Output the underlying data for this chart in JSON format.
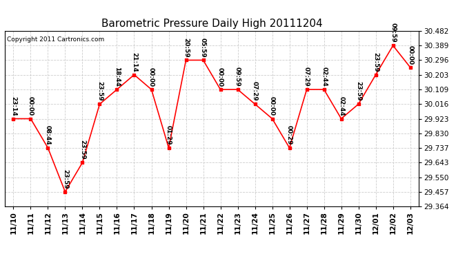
{
  "title": "Barometric Pressure Daily High 20111204",
  "copyright": "Copyright 2011 Cartronics.com",
  "x_labels": [
    "11/10",
    "11/11",
    "11/12",
    "11/13",
    "11/14",
    "11/15",
    "11/16",
    "11/17",
    "11/18",
    "11/19",
    "11/20",
    "11/21",
    "11/22",
    "11/23",
    "11/24",
    "11/25",
    "11/26",
    "11/27",
    "11/28",
    "11/29",
    "11/30",
    "12/01",
    "12/02",
    "12/03"
  ],
  "y_values": [
    29.923,
    29.923,
    29.737,
    29.457,
    29.643,
    30.016,
    30.109,
    30.203,
    30.109,
    29.737,
    30.296,
    30.296,
    30.109,
    30.109,
    30.016,
    29.923,
    29.737,
    30.109,
    30.109,
    29.923,
    30.016,
    30.203,
    30.389,
    30.25
  ],
  "point_labels": [
    "23:14",
    "00:00",
    "08:44",
    "23:59",
    "23:59",
    "23:59",
    "18:44",
    "21:14",
    "00:00",
    "01:29",
    "20:59",
    "05:59",
    "00:00",
    "09:59",
    "07:29",
    "00:00",
    "00:29",
    "07:29",
    "02:44",
    "02:44",
    "23:59",
    "23:59",
    "09:59",
    "00:00"
  ],
  "ylim_min": 29.364,
  "ylim_max": 30.482,
  "yticks": [
    29.364,
    29.457,
    29.55,
    29.643,
    29.737,
    29.83,
    29.923,
    30.016,
    30.109,
    30.203,
    30.296,
    30.389,
    30.482
  ],
  "line_color": "red",
  "marker_color": "red",
  "bg_color": "#ffffff",
  "grid_color": "#cccccc",
  "title_fontsize": 11,
  "label_fontsize": 6.5,
  "tick_fontsize": 7.5,
  "copyright_fontsize": 6.5
}
